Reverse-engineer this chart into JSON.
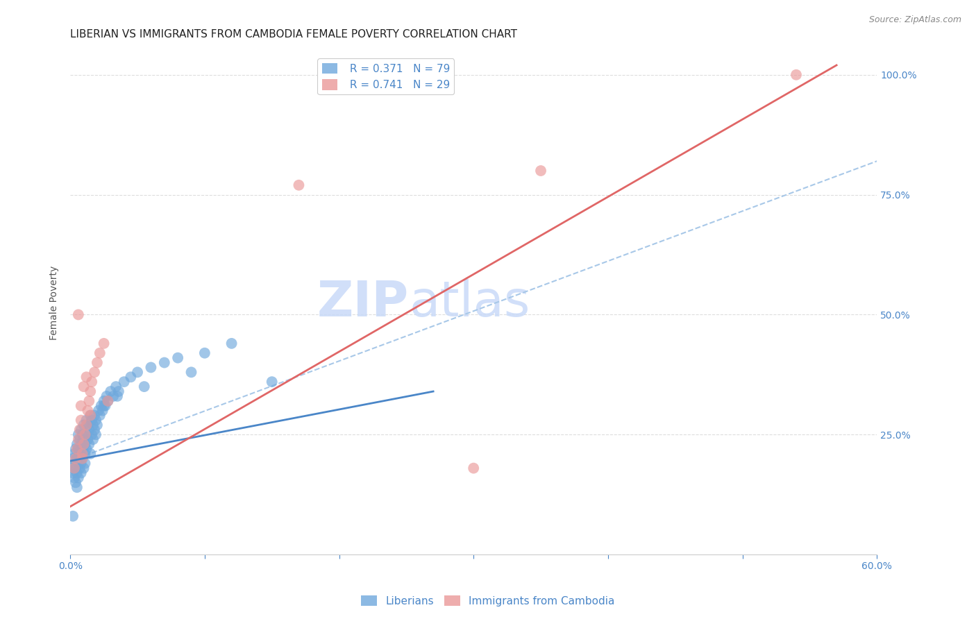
{
  "title": "LIBERIAN VS IMMIGRANTS FROM CAMBODIA FEMALE POVERTY CORRELATION CHART",
  "source": "Source: ZipAtlas.com",
  "ylabel": "Female Poverty",
  "watermark_zip": "ZIP",
  "watermark_atlas": "atlas",
  "xlim": [
    0.0,
    0.6
  ],
  "ylim": [
    0.0,
    1.05
  ],
  "xtick_positions": [
    0.0,
    0.1,
    0.2,
    0.3,
    0.4,
    0.5,
    0.6
  ],
  "xtick_labels": [
    "0.0%",
    "",
    "",
    "",
    "",
    "",
    "60.0%"
  ],
  "ytick_labels": [
    "100.0%",
    "75.0%",
    "50.0%",
    "25.0%"
  ],
  "ytick_positions": [
    1.0,
    0.75,
    0.5,
    0.25
  ],
  "liberian_color": "#6fa8dc",
  "cambodia_color": "#ea9999",
  "liberian_line_color": "#4a86c8",
  "cambodia_line_color": "#e06666",
  "dashed_line_color": "#a8c8e8",
  "R_liberian": 0.371,
  "N_liberian": 79,
  "R_cambodia": 0.741,
  "N_cambodia": 29,
  "liberian_x": [
    0.001,
    0.002,
    0.002,
    0.003,
    0.003,
    0.003,
    0.004,
    0.004,
    0.004,
    0.005,
    0.005,
    0.005,
    0.005,
    0.006,
    0.006,
    0.006,
    0.006,
    0.007,
    0.007,
    0.007,
    0.007,
    0.008,
    0.008,
    0.008,
    0.008,
    0.009,
    0.009,
    0.009,
    0.01,
    0.01,
    0.01,
    0.011,
    0.011,
    0.011,
    0.012,
    0.012,
    0.012,
    0.013,
    0.013,
    0.014,
    0.014,
    0.015,
    0.015,
    0.016,
    0.016,
    0.017,
    0.017,
    0.018,
    0.018,
    0.019,
    0.019,
    0.02,
    0.021,
    0.022,
    0.023,
    0.024,
    0.025,
    0.026,
    0.027,
    0.028,
    0.03,
    0.032,
    0.034,
    0.036,
    0.04,
    0.045,
    0.05,
    0.06,
    0.07,
    0.08,
    0.09,
    0.1,
    0.12,
    0.005,
    0.002,
    0.15,
    0.025,
    0.035,
    0.055
  ],
  "liberian_y": [
    0.18,
    0.2,
    0.17,
    0.16,
    0.19,
    0.21,
    0.15,
    0.22,
    0.18,
    0.14,
    0.2,
    0.17,
    0.23,
    0.16,
    0.19,
    0.22,
    0.25,
    0.18,
    0.21,
    0.24,
    0.2,
    0.17,
    0.23,
    0.26,
    0.19,
    0.22,
    0.25,
    0.2,
    0.18,
    0.24,
    0.27,
    0.21,
    0.23,
    0.19,
    0.22,
    0.25,
    0.28,
    0.24,
    0.27,
    0.23,
    0.26,
    0.21,
    0.29,
    0.25,
    0.28,
    0.24,
    0.27,
    0.26,
    0.29,
    0.25,
    0.28,
    0.27,
    0.3,
    0.29,
    0.31,
    0.3,
    0.32,
    0.31,
    0.33,
    0.32,
    0.34,
    0.33,
    0.35,
    0.34,
    0.36,
    0.37,
    0.38,
    0.39,
    0.4,
    0.41,
    0.38,
    0.42,
    0.44,
    0.2,
    0.08,
    0.36,
    0.31,
    0.33,
    0.35
  ],
  "cambodia_x": [
    0.003,
    0.004,
    0.005,
    0.006,
    0.007,
    0.008,
    0.009,
    0.01,
    0.011,
    0.012,
    0.013,
    0.014,
    0.015,
    0.016,
    0.018,
    0.02,
    0.022,
    0.025,
    0.028,
    0.015,
    0.01,
    0.008,
    0.012,
    0.006,
    0.009,
    0.35,
    0.54,
    0.17,
    0.3
  ],
  "cambodia_y": [
    0.18,
    0.2,
    0.22,
    0.24,
    0.26,
    0.28,
    0.21,
    0.23,
    0.25,
    0.27,
    0.3,
    0.32,
    0.34,
    0.36,
    0.38,
    0.4,
    0.42,
    0.44,
    0.32,
    0.29,
    0.35,
    0.31,
    0.37,
    0.5,
    0.2,
    0.8,
    1.0,
    0.77,
    0.18
  ],
  "liberian_line_x": [
    0.0,
    0.27
  ],
  "liberian_line_y": [
    0.195,
    0.34
  ],
  "dashed_line_x": [
    0.0,
    0.6
  ],
  "dashed_line_y": [
    0.195,
    0.82
  ],
  "cambodia_line_x": [
    0.0,
    0.57
  ],
  "cambodia_line_y": [
    0.1,
    1.02
  ],
  "background_color": "#ffffff",
  "grid_color": "#dddddd",
  "tick_color": "#4a86c8",
  "title_fontsize": 11,
  "axis_label_fontsize": 10,
  "tick_label_fontsize": 10,
  "legend_fontsize": 11
}
